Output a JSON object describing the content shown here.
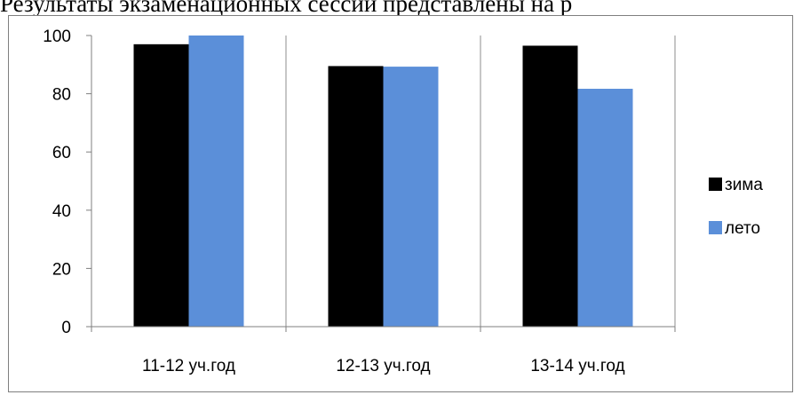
{
  "document": {
    "text_line": "Результаты экзаменационных сессии представлены на р"
  },
  "chart_data": {
    "type": "bar",
    "categories": [
      "11-12 уч.год",
      "12-13 уч.год",
      "13-14 уч.год"
    ],
    "series": [
      {
        "name": "зима",
        "color": "#000000",
        "values": [
          97,
          89.5,
          96.5
        ]
      },
      {
        "name": "лето",
        "color": "#5b8fd9",
        "values": [
          100,
          89.3,
          81.7
        ]
      }
    ],
    "yticks": [
      0,
      20,
      40,
      60,
      80,
      100
    ],
    "ylim": [
      0,
      100
    ],
    "grid": "vertical-separators",
    "legend_position": "right"
  }
}
